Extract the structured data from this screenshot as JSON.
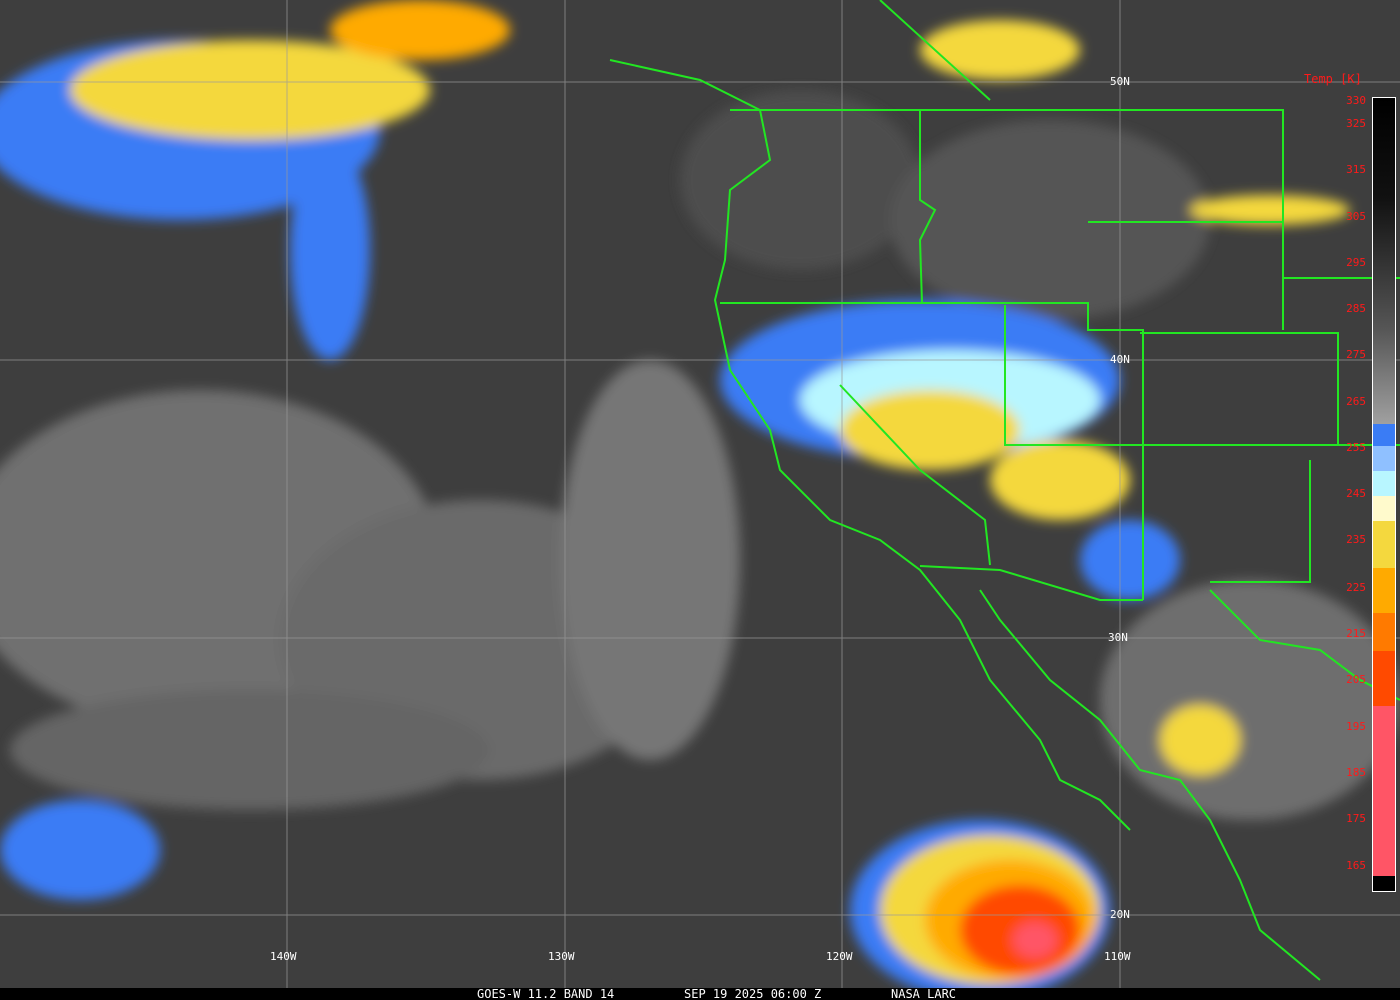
{
  "caption": {
    "satellite": "GOES-W 11.2 BAND 14",
    "datetime": "SEP 19 2025 06:00 Z",
    "source": "NASA LARC"
  },
  "latitude_labels": [
    "50N",
    "40N",
    "30N",
    "20N"
  ],
  "longitude_labels": [
    "140W",
    "130W",
    "120W",
    "110W"
  ],
  "colorbar": {
    "title": "Temp [K]",
    "ticks": [
      "330",
      "325",
      "315",
      "305",
      "295",
      "285",
      "275",
      "265",
      "255",
      "245",
      "235",
      "225",
      "215",
      "205",
      "195",
      "185",
      "175",
      "165"
    ],
    "colors": {
      "warm_top": "#000000",
      "gray_mid": "#a0a0a0",
      "blue": "#3a7cf5",
      "light_blue": "#8fc0ff",
      "cyan": "#b8f6ff",
      "pale_yellow": "#fffacc",
      "yellow": "#f4d83e",
      "orange": "#ffaa00",
      "dark_orange": "#ff7a00",
      "red_orange": "#ff4a00",
      "pink": "#ff5566"
    }
  },
  "colors": {
    "borders": "#22e622",
    "grid": "#9a9a9a",
    "tick_labels": "#ff1a1a"
  }
}
